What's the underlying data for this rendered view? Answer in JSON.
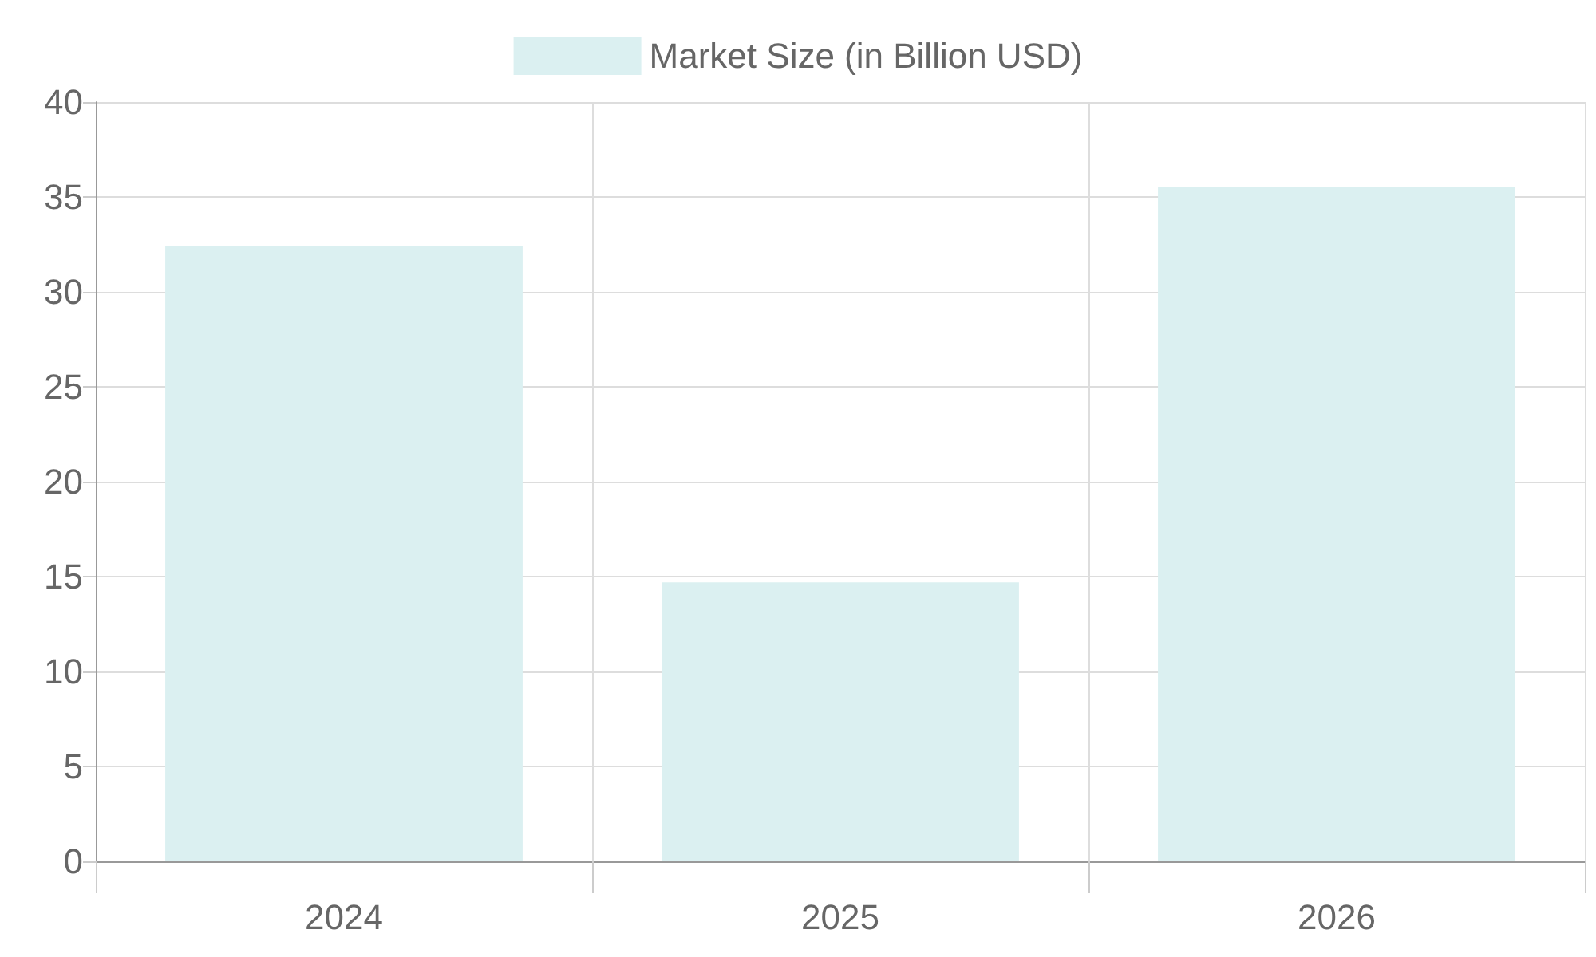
{
  "chart_data": {
    "type": "bar",
    "categories": [
      "2024",
      "2025",
      "2026"
    ],
    "series": [
      {
        "name": "Market Size (in Billion USD)",
        "color": "#dbf0f1",
        "values": [
          32.4,
          14.7,
          35.5
        ]
      }
    ],
    "ylim": [
      0,
      40
    ],
    "yticks": [
      0,
      5,
      10,
      15,
      20,
      25,
      30,
      35,
      40
    ],
    "grid": true,
    "legend": "top"
  }
}
